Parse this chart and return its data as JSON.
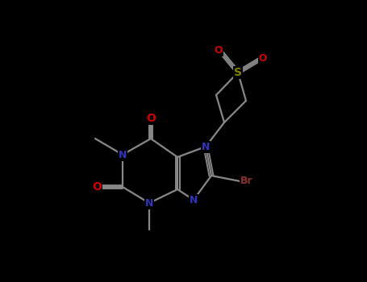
{
  "background_color": "#000000",
  "atom_colors": {
    "N": "#3333bb",
    "O": "#cc0000",
    "S": "#808000",
    "Br": "#8b3030",
    "C": "#888888"
  },
  "bond_color": "#888888",
  "figsize": [
    4.55,
    3.5
  ],
  "dpi": 100
}
